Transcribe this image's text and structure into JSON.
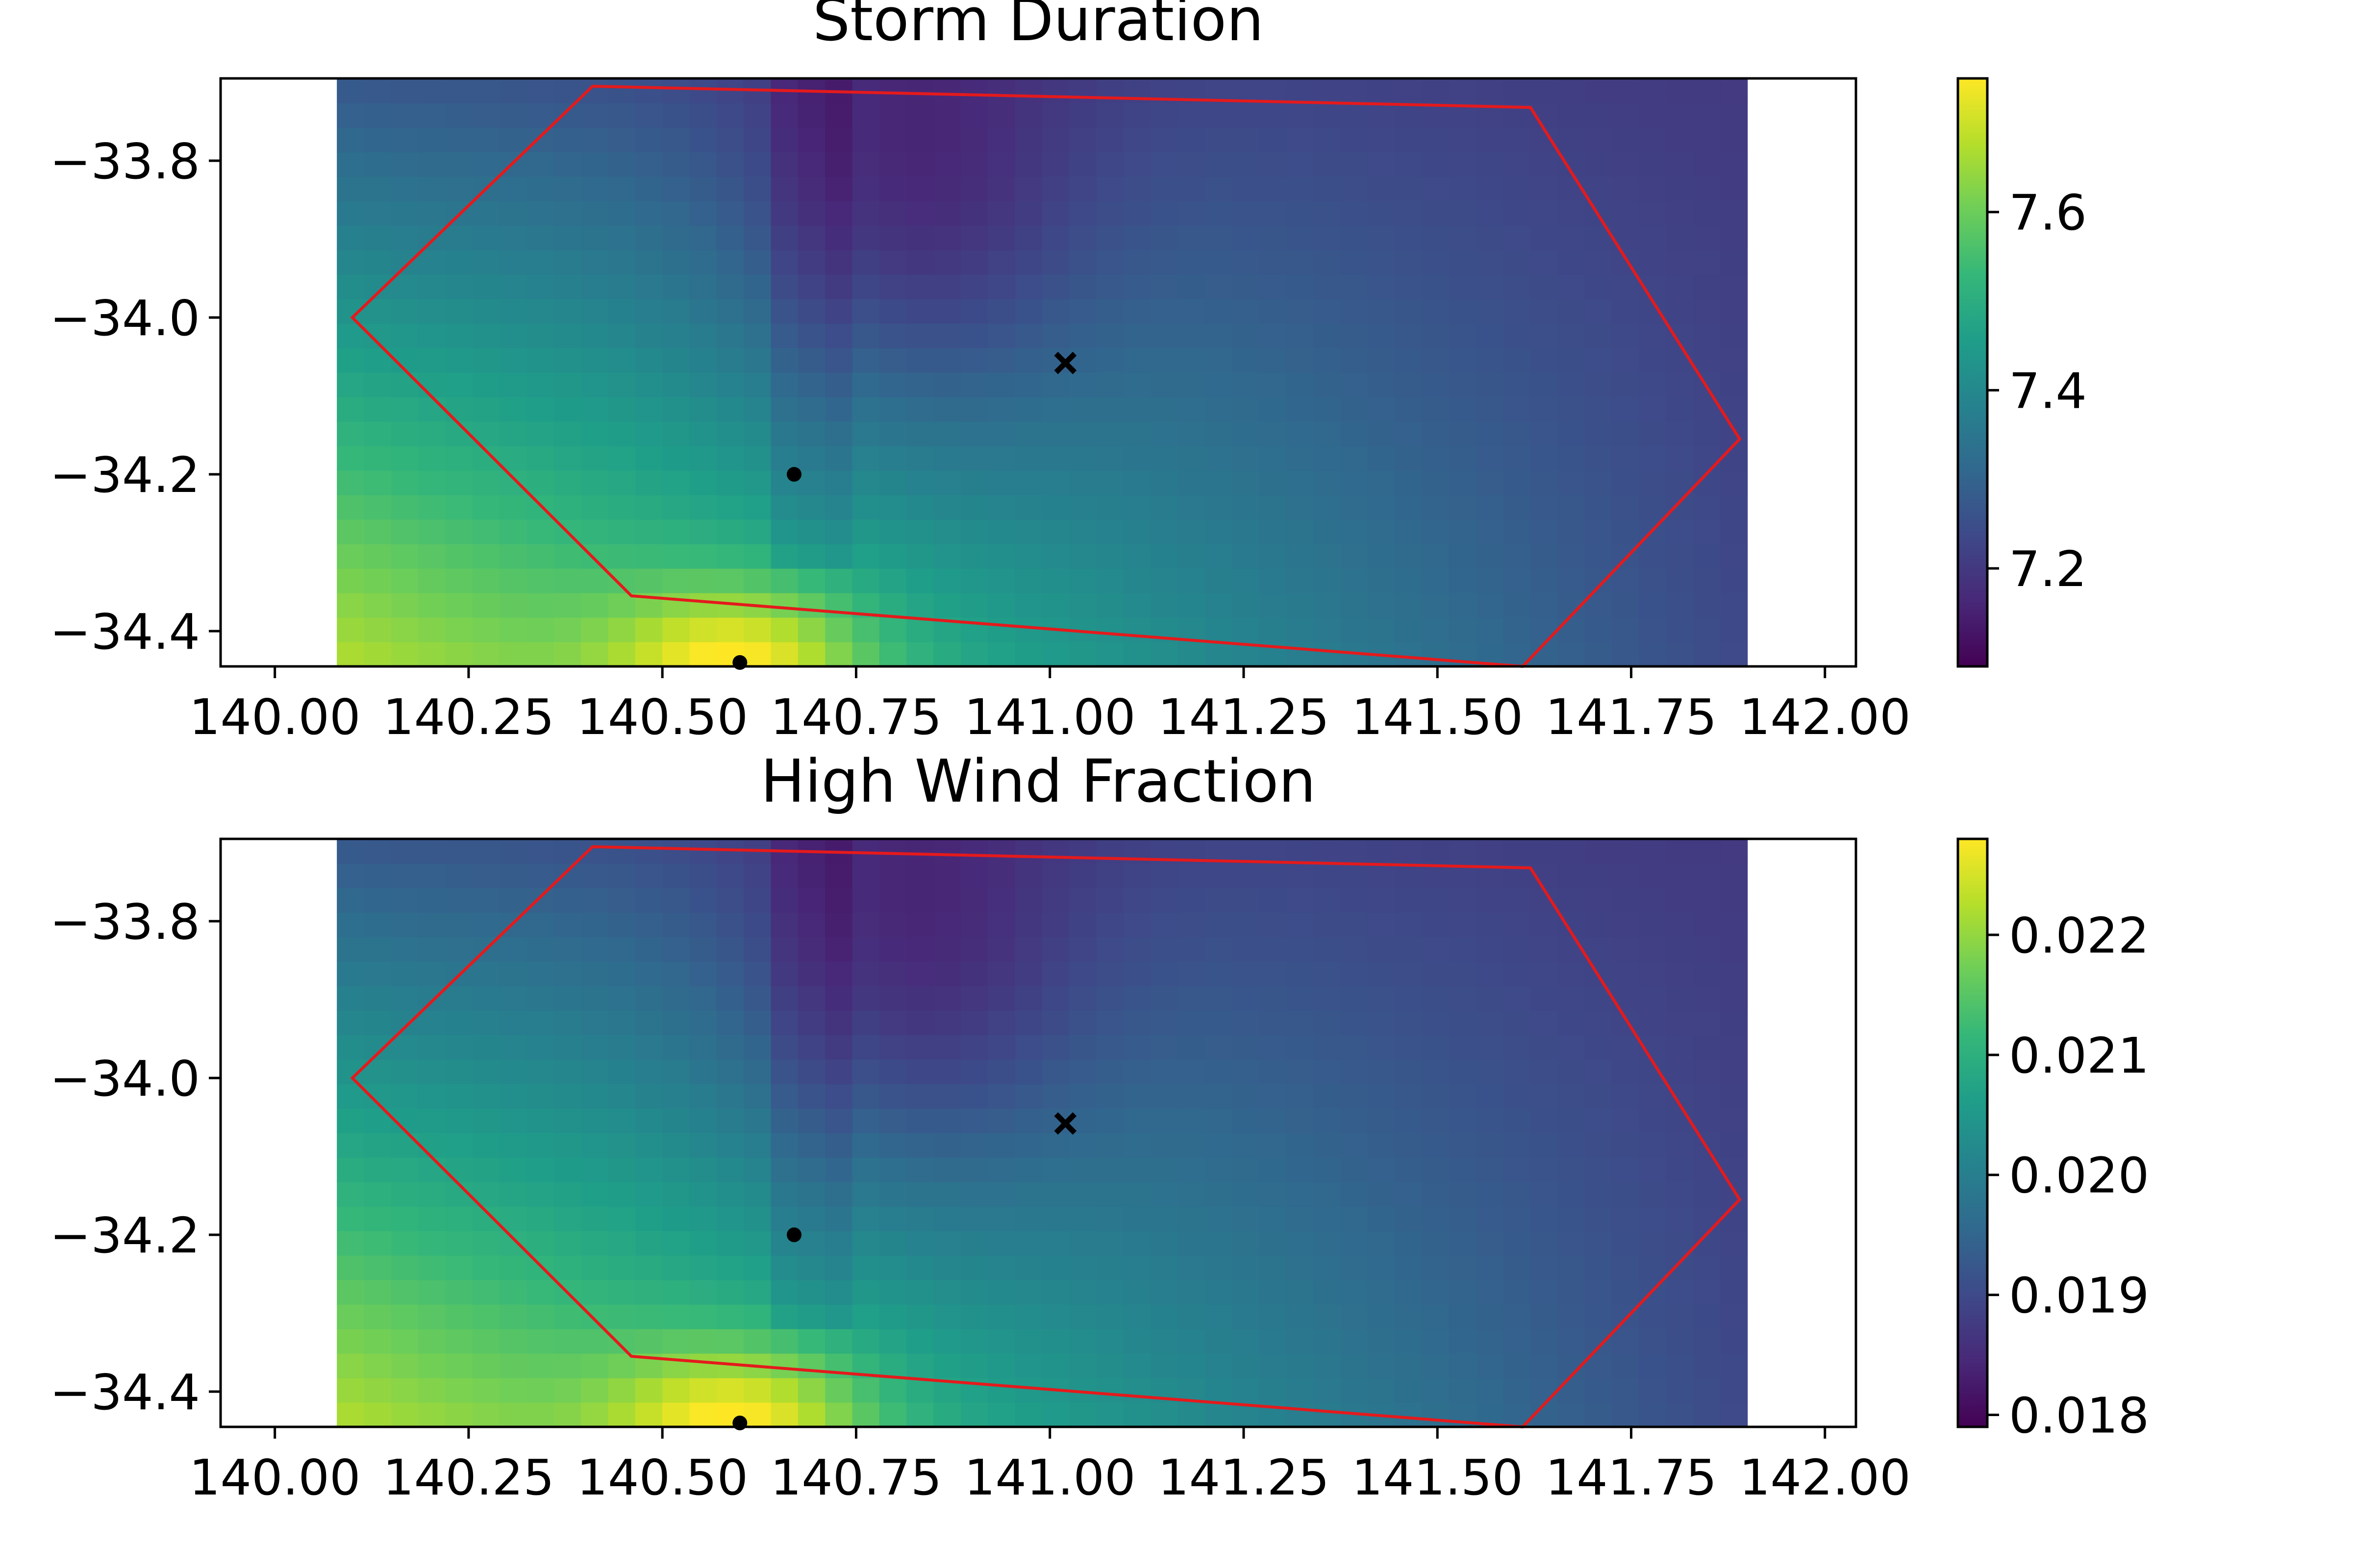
{
  "chart_data": [
    {
      "type": "heatmap",
      "title": "Storm Duration",
      "xlim": [
        139.93,
        142.04
      ],
      "ylim": [
        -34.445,
        -33.695
      ],
      "xticks": [
        140.0,
        140.25,
        140.5,
        140.75,
        141.0,
        141.25,
        141.5,
        141.75,
        142.0
      ],
      "xtick_labels": [
        "140.00",
        "140.25",
        "140.50",
        "140.75",
        "141.00",
        "141.25",
        "141.50",
        "141.75",
        "142.00"
      ],
      "yticks": [
        -33.8,
        -34.0,
        -34.2,
        -34.4
      ],
      "ytick_labels": [
        "−33.8",
        "−34.0",
        "−34.2",
        "−34.4"
      ],
      "grid_extent": {
        "x": [
          140.08,
          141.9
        ],
        "y": [
          -34.445,
          -33.695
        ]
      },
      "colormap": "viridis",
      "colorbar": {
        "range": [
          7.09,
          7.75
        ],
        "ticks": [
          7.2,
          7.4,
          7.6
        ],
        "tick_labels": [
          "7.2",
          "7.4",
          "7.6"
        ]
      },
      "field_estimates": [
        {
          "x": 140.6,
          "y": -34.43,
          "value": 7.75
        },
        {
          "x": 140.1,
          "y": -34.44,
          "value": 7.55
        },
        {
          "x": 140.1,
          "y": -33.7,
          "value": 7.3
        },
        {
          "x": 140.85,
          "y": -33.9,
          "value": 7.1
        },
        {
          "x": 141.9,
          "y": -34.44,
          "value": 7.35
        },
        {
          "x": 141.9,
          "y": -33.7,
          "value": 7.2
        }
      ],
      "polygon": {
        "color": "#e41a1c",
        "vertices": [
          [
            140.1,
            -34.0
          ],
          [
            140.41,
            -33.705
          ],
          [
            141.62,
            -33.732
          ],
          [
            141.89,
            -34.155
          ],
          [
            141.61,
            -34.445
          ],
          [
            140.46,
            -34.355
          ]
        ]
      },
      "points": [
        {
          "x": 140.67,
          "y": -34.2,
          "marker": "dot"
        },
        {
          "x": 140.6,
          "y": -34.44,
          "marker": "dot"
        },
        {
          "x": 141.02,
          "y": -34.058,
          "marker": "x"
        }
      ]
    },
    {
      "type": "heatmap",
      "title": "High Wind Fraction",
      "xlim": [
        139.93,
        142.04
      ],
      "ylim": [
        -34.445,
        -33.695
      ],
      "xticks": [
        140.0,
        140.25,
        140.5,
        140.75,
        141.0,
        141.25,
        141.5,
        141.75,
        142.0
      ],
      "xtick_labels": [
        "140.00",
        "140.25",
        "140.50",
        "140.75",
        "141.00",
        "141.25",
        "141.50",
        "141.75",
        "142.00"
      ],
      "yticks": [
        -33.8,
        -34.0,
        -34.2,
        -34.4
      ],
      "ytick_labels": [
        "−33.8",
        "−34.0",
        "−34.2",
        "−34.4"
      ],
      "grid_extent": {
        "x": [
          140.08,
          141.9
        ],
        "y": [
          -34.445,
          -33.695
        ]
      },
      "colormap": "viridis",
      "colorbar": {
        "range": [
          0.0179,
          0.0228
        ],
        "ticks": [
          0.018,
          0.019,
          0.02,
          0.021,
          0.022
        ],
        "tick_labels": [
          "0.018",
          "0.019",
          "0.020",
          "0.021",
          "0.022"
        ]
      },
      "field_estimates": [
        {
          "x": 140.6,
          "y": -34.43,
          "value": 0.0228
        },
        {
          "x": 140.1,
          "y": -34.44,
          "value": 0.0213
        },
        {
          "x": 140.1,
          "y": -33.7,
          "value": 0.0195
        },
        {
          "x": 140.85,
          "y": -33.9,
          "value": 0.018
        },
        {
          "x": 141.9,
          "y": -34.44,
          "value": 0.0198
        },
        {
          "x": 141.9,
          "y": -33.7,
          "value": 0.0186
        }
      ],
      "polygon": {
        "color": "#e41a1c",
        "vertices": [
          [
            140.1,
            -34.0
          ],
          [
            140.41,
            -33.705
          ],
          [
            141.62,
            -33.732
          ],
          [
            141.89,
            -34.155
          ],
          [
            141.61,
            -34.445
          ],
          [
            140.46,
            -34.355
          ]
        ]
      },
      "points": [
        {
          "x": 140.67,
          "y": -34.2,
          "marker": "dot"
        },
        {
          "x": 140.6,
          "y": -34.44,
          "marker": "dot"
        },
        {
          "x": 141.02,
          "y": -34.058,
          "marker": "x"
        }
      ]
    }
  ]
}
